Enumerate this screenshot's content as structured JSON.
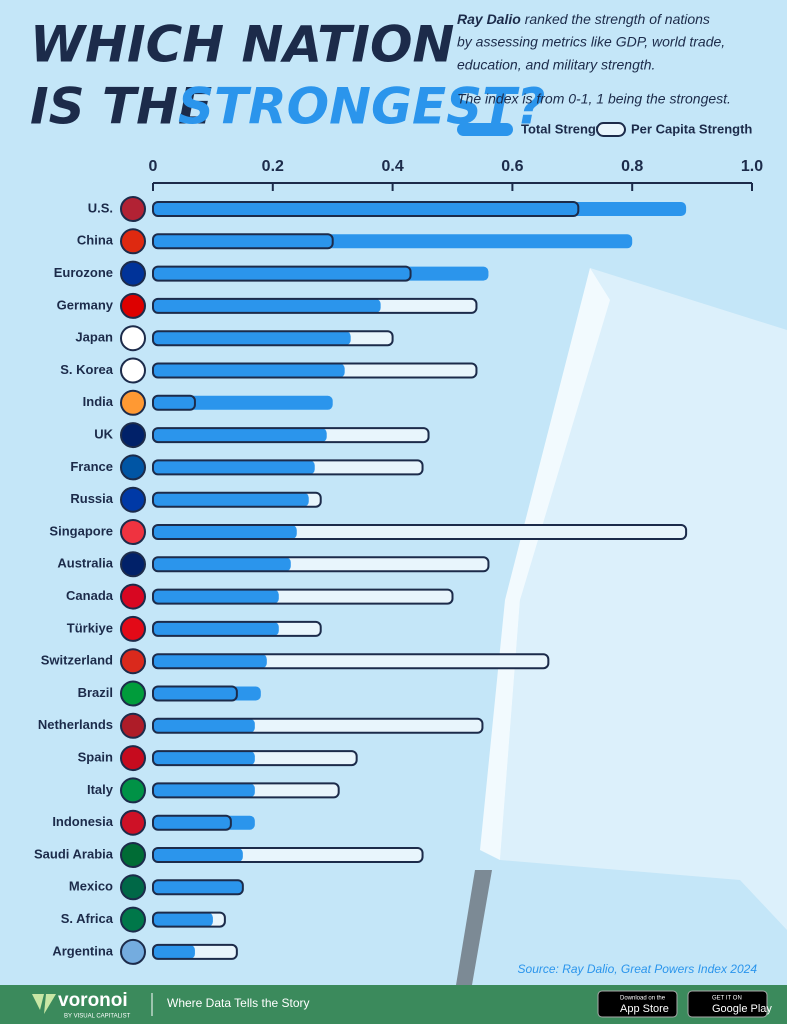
{
  "chart_data": {
    "type": "bar",
    "title_line1": "WHICH NATION",
    "title_line2a": "IS THE",
    "title_line2b": "STRONGEST?",
    "description": [
      "Ray Dalio",
      "ranked the strength of nations",
      "by assessing metrics like GDP, world trade,",
      "education, and military strength."
    ],
    "note": "The index is from 0-1, 1 being the strongest.",
    "categories": [
      "U.S.",
      "China",
      "Eurozone",
      "Germany",
      "Japan",
      "S. Korea",
      "India",
      "UK",
      "France",
      "Russia",
      "Singapore",
      "Australia",
      "Canada",
      "Türkiye",
      "Switzerland",
      "Brazil",
      "Netherlands",
      "Spain",
      "Italy",
      "Indonesia",
      "Saudi Arabia",
      "Mexico",
      "S. Africa",
      "Argentina"
    ],
    "series": [
      {
        "name": "Total Strength",
        "color": "#2b95ec",
        "values": [
          0.89,
          0.8,
          0.56,
          0.38,
          0.33,
          0.32,
          0.3,
          0.29,
          0.27,
          0.26,
          0.24,
          0.23,
          0.21,
          0.21,
          0.19,
          0.18,
          0.17,
          0.17,
          0.17,
          0.17,
          0.15,
          0.15,
          0.1,
          0.07
        ]
      },
      {
        "name": "Per Capita Strength",
        "color": "#1c2b4a",
        "values": [
          0.71,
          0.3,
          0.43,
          0.54,
          0.4,
          0.54,
          0.07,
          0.46,
          0.45,
          0.28,
          0.89,
          0.56,
          0.5,
          0.28,
          0.66,
          0.14,
          0.55,
          0.34,
          0.31,
          0.13,
          0.45,
          0.15,
          0.12,
          0.14
        ]
      }
    ],
    "xlim": [
      0,
      1
    ],
    "xticks": [
      0,
      0.2,
      0.4,
      0.6,
      0.8,
      {
        "value": 1,
        "label": "1.0"
      }
    ],
    "source": "Source: Ray Dalio, Great Powers Index 2024",
    "footer": {
      "brand": "voronoi",
      "by": "BY VISUAL CAPITALIST",
      "tagline": "Where Data Tells the Story",
      "app_store": [
        "Download on the",
        "App Store"
      ],
      "google_play": [
        "GET IT ON",
        "Google Play"
      ]
    }
  }
}
